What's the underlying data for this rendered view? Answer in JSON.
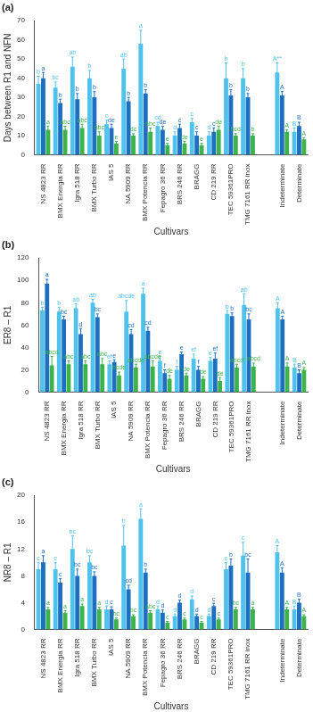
{
  "chart_data": [
    {
      "type": "bar",
      "title": "(a)",
      "x_label": "Cultivars",
      "y_label": "Days between R1 and NFN",
      "categories": [
        "NS 4823 RR",
        "BMX Energia RR",
        "Igra 518 RR",
        "BMX Turbo RR",
        "IAS 5",
        "NA 5909 RR",
        "BMX Potencia RR",
        "Fepagro 36 RR",
        "BRS 246 RR",
        "BRAGG",
        "CD 219 RR",
        "TEC 59361PRO",
        "TMG 7161 RR inox",
        null,
        "Indeterminate",
        "Determinate"
      ],
      "series": [
        {
          "color": "#4fc3ee",
          "values": [
            37,
            35,
            46,
            40,
            16,
            45,
            58,
            15,
            10,
            17,
            10,
            40,
            40,
            null,
            43,
            12
          ],
          "errors": [
            4,
            3,
            5,
            4,
            2,
            5,
            7,
            2,
            2,
            2,
            2,
            8,
            5,
            null,
            5,
            2
          ],
          "letters": [
            "b",
            "bc",
            "ab",
            "b",
            "c",
            "ab",
            "a",
            "cd",
            "d",
            "c",
            "d",
            "b",
            "b",
            null,
            "A**",
            "B"
          ]
        },
        {
          "color": "#1f6fc0",
          "values": [
            40,
            27,
            29,
            30,
            14,
            28,
            32,
            13,
            14,
            10,
            12,
            31,
            30,
            null,
            31,
            15
          ],
          "errors": [
            3,
            2,
            3,
            3,
            2,
            2,
            2,
            2,
            2,
            2,
            2,
            3,
            2,
            null,
            2,
            2
          ],
          "letters": [
            "a",
            "b",
            "b",
            "b",
            "de",
            "b",
            "b",
            "de",
            "c",
            "c",
            "c",
            "b",
            "b",
            null,
            "A",
            "B"
          ]
        },
        {
          "color": "#3cb44b",
          "values": [
            13,
            13,
            14,
            10,
            6,
            10,
            12,
            5,
            6,
            5,
            13,
            10,
            10,
            null,
            12,
            8
          ],
          "errors": [
            2,
            2,
            2,
            2,
            1,
            1,
            2,
            1,
            1,
            1,
            2,
            1,
            1,
            null,
            1,
            1
          ],
          "letters": [
            "a",
            "abc",
            "abc",
            "abc",
            "e",
            "dc",
            "abc",
            "e",
            "de",
            "e",
            "de",
            "bcd",
            "b",
            null,
            "A",
            "A"
          ]
        }
      ],
      "ylim": [
        0,
        70
      ],
      "yticks": [
        0,
        10,
        20,
        30,
        40,
        50,
        60,
        70
      ],
      "grid": false
    },
    {
      "type": "bar",
      "title": "(b)",
      "x_label": "Cultivars",
      "y_label": "ER8 – R1",
      "categories": [
        "NS 4823 RR",
        "BMX Energia RR",
        "Igra 518 RR",
        "BMX Turbo RR",
        "IAS 5",
        "NA 5909 RR",
        "BMX Potencia RR",
        "Fepagro 36 RR",
        "BRS 246 RR",
        "BRAGG",
        "CD 219 RR",
        "TEC 59361PRO",
        "TMG 7161 RR inox",
        null,
        "Indeterminate",
        "Determinate"
      ],
      "series": [
        {
          "color": "#4fc3ee",
          "values": [
            73,
            72,
            75,
            80,
            25,
            72,
            88,
            28,
            20,
            30,
            28,
            70,
            78,
            null,
            75,
            22
          ],
          "errors": [
            3,
            4,
            4,
            3,
            3,
            10,
            5,
            4,
            3,
            4,
            3,
            3,
            10,
            null,
            5,
            3
          ],
          "letters": [
            "b",
            "b",
            "ab",
            "ab",
            "ef",
            "abcde",
            "a",
            "e",
            "f",
            "ef",
            "e",
            "b",
            "ab",
            null,
            "A",
            "B"
          ]
        },
        {
          "color": "#1f6fc0",
          "values": [
            97,
            65,
            52,
            67,
            27,
            52,
            55,
            17,
            34,
            20,
            30,
            68,
            65,
            null,
            65,
            17
          ],
          "errors": [
            4,
            3,
            5,
            3,
            2,
            4,
            3,
            3,
            2,
            3,
            5,
            3,
            5,
            null,
            3,
            3
          ],
          "letters": [
            "a",
            "bc",
            "d",
            "bc",
            "e",
            "cd",
            "cd",
            "f",
            "e",
            "f",
            "ef",
            "b",
            "bc",
            null,
            "A",
            "B"
          ]
        },
        {
          "color": "#3cb44b",
          "values": [
            24,
            25,
            25,
            25,
            15,
            22,
            23,
            12,
            15,
            12,
            10,
            22,
            23,
            null,
            23,
            20
          ],
          "errors": [
            8,
            3,
            3,
            5,
            3,
            3,
            5,
            3,
            2,
            2,
            3,
            3,
            3,
            null,
            3,
            2
          ],
          "letters": [
            "abcd",
            "abc",
            "abc",
            "abc",
            "bcde",
            "abcde",
            "abcde",
            "de",
            "de",
            "de",
            "de",
            "abcd",
            "abcd",
            null,
            "A",
            "A"
          ]
        }
      ],
      "ylim": [
        0,
        120
      ],
      "yticks": [
        0,
        20,
        40,
        60,
        80,
        100,
        120
      ],
      "grid": false
    },
    {
      "type": "bar",
      "title": "(c)",
      "x_label": "Cultivars",
      "y_label": "NR8 – R1",
      "categories": [
        "NS 4823 RR",
        "BMX Energia RR",
        "Igra 518 RR",
        "BMX Turbo RR",
        "IAS 5",
        "NA 5909 RR",
        "BMX Potencia RR",
        "Fepagro 36 RR",
        "BRS 246 RR",
        "BRAGG",
        "CD 219 RR",
        "TEC 59361PRO",
        "TMG 7161 RR inox",
        null,
        "Indeterminate",
        "Determinate"
      ],
      "series": [
        {
          "color": "#4fc3ee",
          "values": [
            9,
            9,
            12,
            10,
            3,
            12.5,
            16.5,
            3,
            2,
            4.5,
            2,
            9,
            11,
            null,
            11.5,
            3
          ],
          "errors": [
            1,
            1,
            2,
            1,
            0.5,
            3,
            1.5,
            0.5,
            0.3,
            0.5,
            0.3,
            1,
            2,
            null,
            1,
            0.5
          ],
          "letters": [
            "c",
            "c",
            "bc",
            "bc",
            "d",
            "b",
            "a",
            "d",
            "d",
            "d",
            "d",
            "c",
            "c",
            null,
            "A",
            "B"
          ]
        },
        {
          "color": "#1f6fc0",
          "values": [
            10,
            7,
            8,
            8,
            3,
            6,
            8.5,
            2.5,
            4,
            2,
            3.5,
            9.5,
            8.5,
            null,
            8.5,
            4
          ],
          "errors": [
            1,
            0.6,
            1,
            0.6,
            0.4,
            0.6,
            0.5,
            0.4,
            0.4,
            0.3,
            0.4,
            1,
            2,
            null,
            0.7,
            0.5
          ],
          "letters": [
            "a",
            "c",
            "bc",
            "bc",
            "c",
            "cd",
            "b",
            "d",
            "d",
            "d",
            "c",
            "b",
            "bc",
            null,
            "A",
            "B"
          ]
        },
        {
          "color": "#3cb44b",
          "values": [
            3,
            2.5,
            3.5,
            3,
            1.5,
            2,
            2.5,
            1,
            1.5,
            1,
            1.5,
            3,
            3,
            null,
            3,
            2
          ],
          "errors": [
            0.3,
            0.3,
            0.3,
            0.3,
            0.2,
            0.2,
            0.3,
            0.2,
            0.2,
            0.2,
            0.2,
            0.3,
            0.3,
            null,
            0.3,
            0.2
          ],
          "letters": [
            "a",
            "a",
            "a",
            "a",
            "bc",
            "bc",
            "abc",
            "c",
            "c",
            "c",
            "c",
            "bc",
            "a",
            null,
            "A",
            "A"
          ]
        }
      ],
      "ylim": [
        0,
        20
      ],
      "yticks": [
        0,
        4,
        8,
        12,
        16,
        20
      ],
      "grid": false
    }
  ]
}
